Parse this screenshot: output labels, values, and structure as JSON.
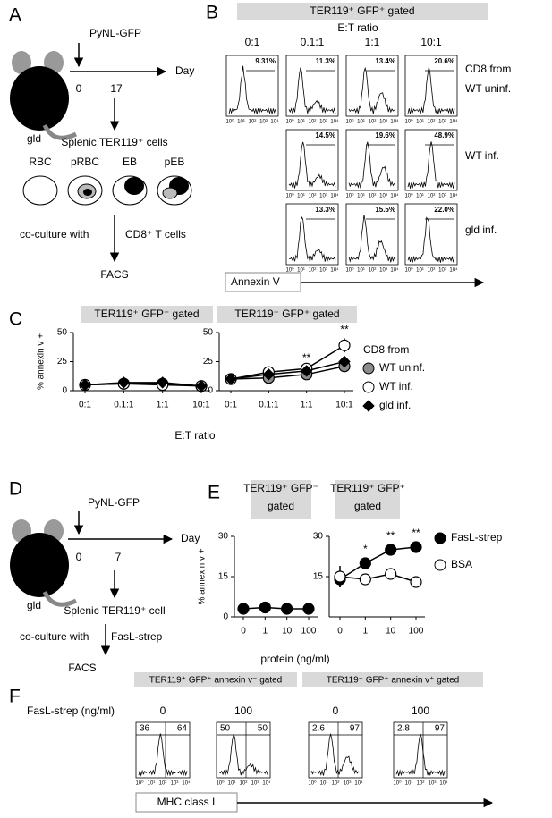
{
  "panels": {
    "A": {
      "letter": "A",
      "injection": "PyNL-GFP",
      "axis_label": "Day",
      "days": [
        "0",
        "17"
      ],
      "mouse": "gld",
      "cells_title": "Splenic TER119⁺ cells",
      "cell_types": [
        "RBC",
        "pRBC",
        "EB",
        "pEB"
      ],
      "coculture": "co-culture with",
      "coculture_with": "CD8⁺ T cells",
      "readout": "FACS"
    },
    "B": {
      "letter": "B",
      "gate": "TER119⁺ GFP⁺ gated",
      "ratio_label": "E:T ratio",
      "columns": [
        "0:1",
        "0.1:1",
        "1:1",
        "10:1"
      ],
      "rows": [
        {
          "label_lines": [
            "CD8 from",
            "WT uninf."
          ],
          "percents": [
            "9.31%",
            "11.3%",
            "13.4%",
            "20.6%"
          ]
        },
        {
          "label_lines": [
            "WT inf."
          ],
          "percents": [
            "14.5%",
            "19.6%",
            "48.9%"
          ]
        },
        {
          "label_lines": [
            "gld inf."
          ],
          "percents": [
            "13.3%",
            "15.5%",
            "22.0%"
          ]
        }
      ],
      "flow_ticks": [
        "10⁰",
        "10¹",
        "10²",
        "10³",
        "10⁴"
      ],
      "x_axis": "Annexin V"
    },
    "C": {
      "letter": "C"
    },
    "D": {
      "letter": "D",
      "injection": "PyNL-GFP",
      "axis_label": "Day",
      "days": [
        "0",
        "7"
      ],
      "mouse": "gld",
      "cells_title": "Splenic TER119⁺ cell",
      "coculture": "co-culture with",
      "coculture_with": "FasL-strep",
      "readout": "FACS"
    },
    "E": {
      "letter": "E"
    },
    "F": {
      "letter": "F",
      "row_label": "FasL-strep (ng/ml)",
      "gates": [
        "TER119⁺ GFP⁺ annexin v⁻ gated",
        "TER119⁺ GFP⁺ annexin v⁺ gated"
      ],
      "plots": [
        {
          "condition": "0",
          "left": "36",
          "right": "64"
        },
        {
          "condition": "100",
          "left": "50",
          "right": "50"
        },
        {
          "condition": "0",
          "left": "2.6",
          "right": "97"
        },
        {
          "condition": "100",
          "left": "2.8",
          "right": "97"
        }
      ],
      "flow_ticks": [
        "10⁰",
        "10¹",
        "10²",
        "10³",
        "10⁴"
      ],
      "x_axis": "MHC class I"
    }
  },
  "chart_data": [
    {
      "type": "line",
      "title_lines": [
        "TER119⁺ GFP⁻ gated"
      ],
      "ylabel": "% annexin v +",
      "xlabel": "E:T ratio",
      "categories": [
        "0:1",
        "0.1:1",
        "1:1",
        "10:1"
      ],
      "ylim": [
        0,
        50
      ],
      "yticks": [
        0,
        25,
        50
      ],
      "series": [
        {
          "color": "#8c8c8c",
          "marker": "circle",
          "values": [
            5,
            6,
            6,
            4
          ]
        },
        {
          "color": "#ffffff",
          "marker": "circle",
          "values": [
            5,
            6,
            5,
            4
          ]
        },
        {
          "color": "#000000",
          "marker": "diamond",
          "values": [
            5,
            7,
            7,
            4
          ]
        }
      ]
    },
    {
      "type": "line",
      "title_lines": [
        "TER119⁺ GFP⁺ gated"
      ],
      "legend_title": "CD8 from",
      "categories": [
        "0:1",
        "0.1:1",
        "1:1",
        "10:1"
      ],
      "ylim": [
        0,
        50
      ],
      "yticks": [
        0,
        25,
        50
      ],
      "series": [
        {
          "name": "WT uninf.",
          "color": "#8c8c8c",
          "marker": "circle",
          "values": [
            10,
            11,
            14,
            21
          ]
        },
        {
          "name": "WT inf.",
          "color": "#ffffff",
          "marker": "circle",
          "values": [
            10,
            16,
            19,
            39
          ],
          "errors": [
            1,
            1,
            2,
            6
          ]
        },
        {
          "name": "gld inf.",
          "color": "#000000",
          "marker": "diamond",
          "values": [
            10,
            14,
            17,
            25
          ]
        }
      ],
      "annotations": [
        {
          "label": "**",
          "at": "1:1"
        },
        {
          "label": "**",
          "at": "10:1"
        }
      ]
    },
    {
      "type": "line",
      "title_lines": [
        "TER119⁺ GFP⁻",
        "gated"
      ],
      "ylabel": "% annexin v +",
      "xlabel": "protein  (ng/ml)",
      "categories": [
        "0",
        "1",
        "10",
        "100"
      ],
      "ylim": [
        0,
        30
      ],
      "yticks": [
        0,
        15,
        30
      ],
      "series": [
        {
          "color": "#000000",
          "marker": "circle",
          "values": [
            3,
            3.5,
            3,
            3
          ]
        }
      ]
    },
    {
      "type": "line",
      "title_lines": [
        "TER119⁺ GFP⁺",
        "gated"
      ],
      "categories": [
        "0",
        "1",
        "10",
        "100"
      ],
      "ylim": [
        0,
        30
      ],
      "yticks": [
        15,
        30
      ],
      "series": [
        {
          "name": "FasL-strep",
          "color": "#000000",
          "marker": "circle",
          "values": [
            14,
            20,
            25,
            26
          ],
          "errors": [
            3,
            2,
            2,
            2
          ]
        },
        {
          "name": "BSA",
          "color": "#ffffff",
          "marker": "circle",
          "values": [
            15,
            14,
            16,
            13
          ],
          "errors": [
            4,
            1,
            1,
            1
          ]
        }
      ],
      "annotations": [
        {
          "label": "*",
          "at": "1"
        },
        {
          "label": "**",
          "at": "10"
        },
        {
          "label": "**",
          "at": "100"
        }
      ]
    }
  ]
}
